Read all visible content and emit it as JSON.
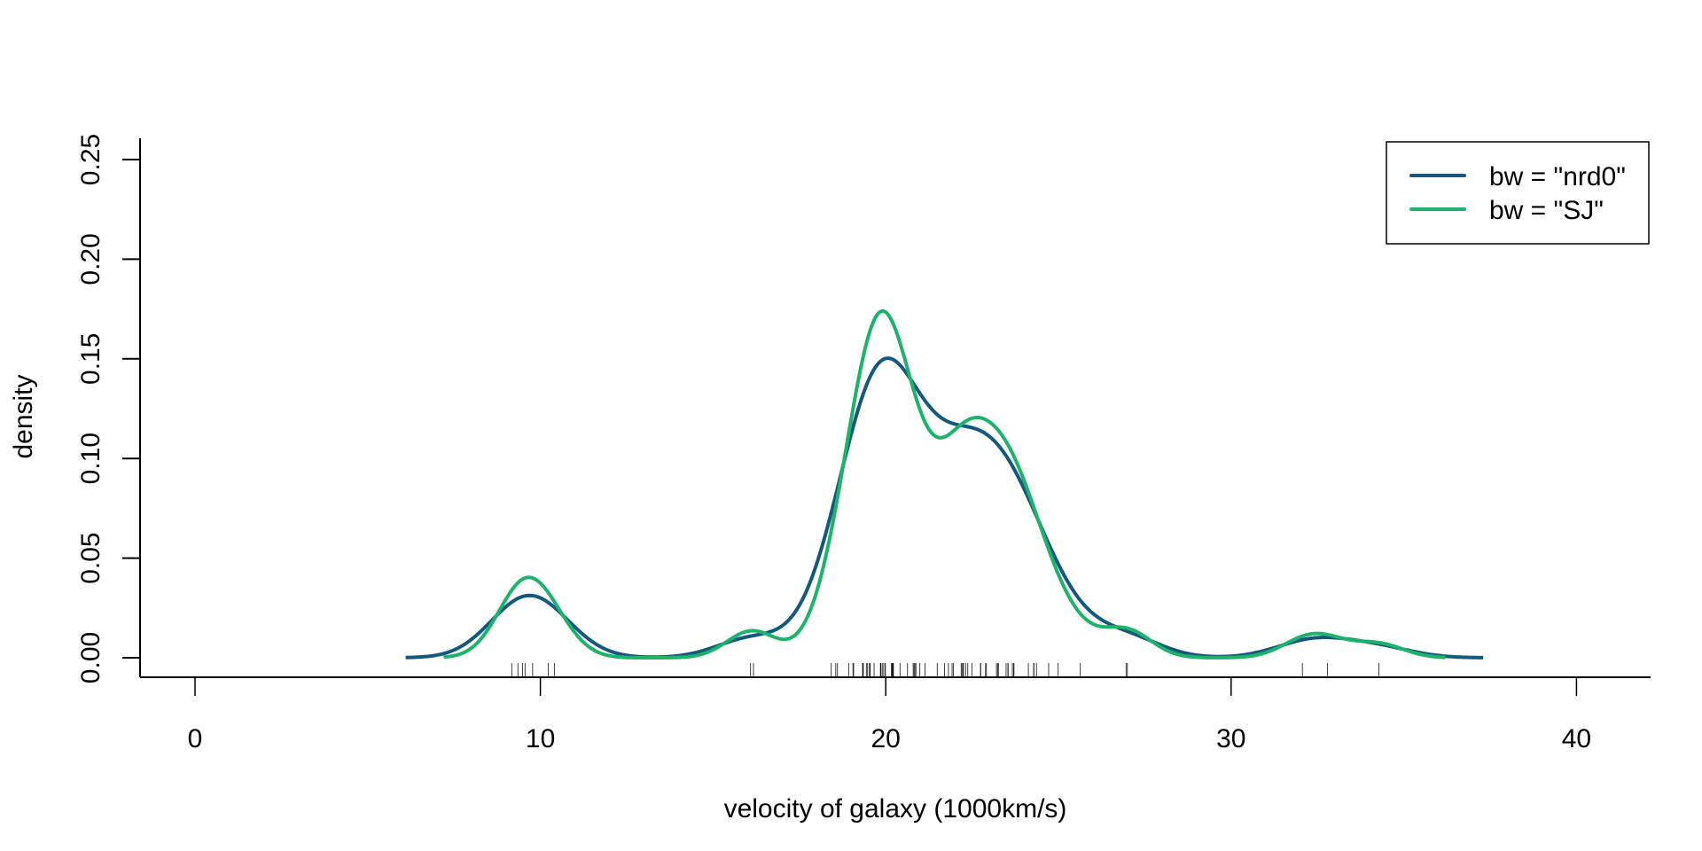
{
  "chart_data": {
    "type": "line",
    "title": "",
    "xlabel": "velocity of galaxy (1000km/s)",
    "ylabel": "density",
    "xlim": [
      -1.6,
      41.6
    ],
    "ylim": [
      -0.0105,
      0.2585
    ],
    "x_ticks": [
      0,
      10,
      20,
      30,
      40
    ],
    "x_tick_labels": [
      "0",
      "10",
      "20",
      "30",
      "40"
    ],
    "y_ticks": [
      0.0,
      0.05,
      0.1,
      0.15,
      0.2,
      0.25
    ],
    "y_tick_labels": [
      "0.00",
      "0.05",
      "0.10",
      "0.15",
      "0.20",
      "0.25"
    ],
    "grid": false,
    "legend_position": "topright",
    "series": [
      {
        "name": "bw = \"nrd0\"",
        "color": "#14587E",
        "bandwidth": 1.0,
        "x_range": [
          6.1,
          37.3
        ],
        "key_points": [
          {
            "x": 6.1,
            "y": 0.0
          },
          {
            "x": 9.7,
            "y": 0.031
          },
          {
            "x": 13.5,
            "y": 0.0
          },
          {
            "x": 16.5,
            "y": 0.012
          },
          {
            "x": 20.1,
            "y": 0.15
          },
          {
            "x": 22.4,
            "y": 0.115
          },
          {
            "x": 26.5,
            "y": 0.018
          },
          {
            "x": 30.0,
            "y": 0.001
          },
          {
            "x": 32.7,
            "y": 0.01
          },
          {
            "x": 37.3,
            "y": 0.0
          }
        ]
      },
      {
        "name": "bw = \"SJ\"",
        "color": "#1DB36B",
        "bandwidth": 0.72,
        "x_range": [
          7.2,
          36.2
        ],
        "key_points": [
          {
            "x": 7.2,
            "y": 0.0
          },
          {
            "x": 9.6,
            "y": 0.043
          },
          {
            "x": 13.5,
            "y": 0.0
          },
          {
            "x": 16.1,
            "y": 0.015
          },
          {
            "x": 17.1,
            "y": 0.007
          },
          {
            "x": 19.9,
            "y": 0.182
          },
          {
            "x": 21.5,
            "y": 0.107
          },
          {
            "x": 22.6,
            "y": 0.123
          },
          {
            "x": 26.9,
            "y": 0.016
          },
          {
            "x": 30.0,
            "y": 0.0
          },
          {
            "x": 32.4,
            "y": 0.013
          },
          {
            "x": 34.0,
            "y": 0.008
          },
          {
            "x": 36.2,
            "y": 0.0
          }
        ]
      }
    ],
    "rug": [
      9.172,
      9.35,
      9.483,
      9.558,
      9.775,
      10.227,
      10.406,
      16.084,
      16.17,
      18.419,
      18.552,
      18.6,
      18.927,
      19.052,
      19.07,
      19.33,
      19.343,
      19.349,
      19.44,
      19.473,
      19.529,
      19.541,
      19.547,
      19.663,
      19.846,
      19.856,
      19.863,
      19.914,
      19.918,
      19.973,
      19.989,
      20.166,
      20.175,
      20.179,
      20.196,
      20.215,
      20.221,
      20.415,
      20.629,
      20.795,
      20.821,
      20.846,
      20.875,
      20.986,
      21.137,
      21.492,
      21.701,
      21.814,
      21.921,
      21.96,
      22.185,
      22.209,
      22.242,
      22.249,
      22.314,
      22.374,
      22.495,
      22.746,
      22.747,
      22.888,
      22.914,
      23.206,
      23.241,
      23.263,
      23.484,
      23.538,
      23.542,
      23.666,
      23.706,
      23.711,
      24.129,
      24.285,
      24.289,
      24.366,
      24.717,
      24.99,
      25.633,
      26.96,
      26.995,
      32.065,
      32.789,
      34.279
    ]
  },
  "legend": {
    "items": [
      {
        "label": "bw = \"nrd0\"",
        "color": "#14587E"
      },
      {
        "label": "bw = \"SJ\"",
        "color": "#1DB36B"
      }
    ]
  }
}
